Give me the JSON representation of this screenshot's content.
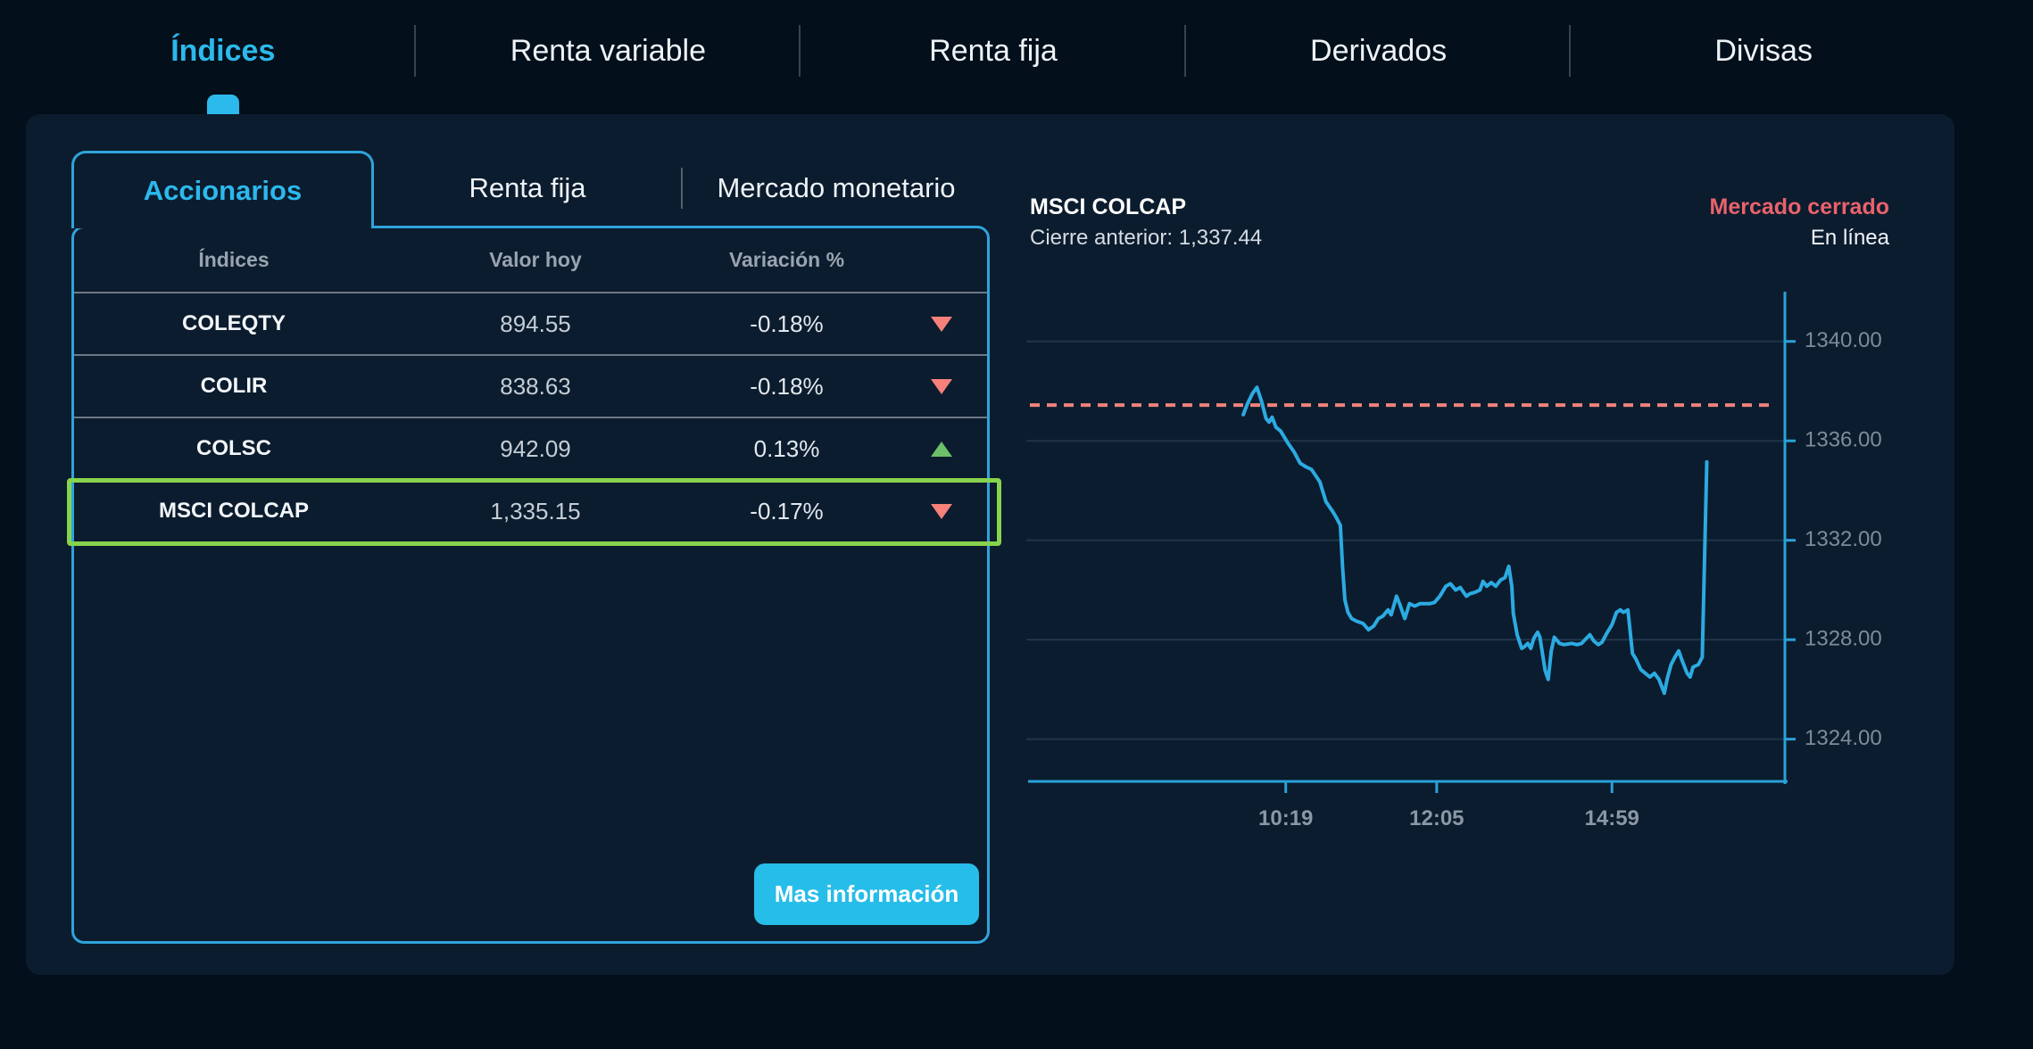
{
  "nav": {
    "tabs": [
      {
        "label": "Índices",
        "active": true
      },
      {
        "label": "Renta variable",
        "active": false
      },
      {
        "label": "Renta fija",
        "active": false
      },
      {
        "label": "Derivados",
        "active": false
      },
      {
        "label": "Divisas",
        "active": false
      }
    ]
  },
  "panel": {
    "tabs": [
      {
        "label": "Accionarios",
        "active": true
      },
      {
        "label": "Renta fija",
        "active": false
      },
      {
        "label": "Mercado monetario",
        "active": false
      }
    ],
    "table": {
      "headers": [
        "Índices",
        "Valor hoy",
        "Variación %"
      ],
      "rows": [
        {
          "name": "COLEQTY",
          "value": "894.55",
          "change": "-0.18%",
          "direction": "down",
          "highlighted": false
        },
        {
          "name": "COLIR",
          "value": "838.63",
          "change": "-0.18%",
          "direction": "down",
          "highlighted": false
        },
        {
          "name": "COLSC",
          "value": "942.09",
          "change": "0.13%",
          "direction": "up",
          "highlighted": false
        },
        {
          "name": "MSCI COLCAP",
          "value": "1,335.15",
          "change": "-0.17%",
          "direction": "down",
          "highlighted": true
        }
      ]
    },
    "button": {
      "label": "Mas información"
    }
  },
  "chart": {
    "title": "MSCI COLCAP",
    "prev_close_label": "Cierre anterior: 1,337.44",
    "status": "Mercado cerrado",
    "mode": "En línea"
  },
  "chart_data": {
    "type": "line",
    "title": "MSCI COLCAP intraday",
    "prev_close": 1337.44,
    "y_ticks": [
      1340,
      1336,
      1332,
      1328,
      1324
    ],
    "y_range": [
      1322.3,
      1342.0
    ],
    "x_ticks": [
      {
        "label": "10:19",
        "pos": 0.342
      },
      {
        "label": "12:05",
        "pos": 0.541
      },
      {
        "label": "14:59",
        "pos": 0.772
      }
    ],
    "grid": "horizontal",
    "series": [
      {
        "name": "MSCI COLCAP",
        "points": [
          [
            0.286,
            1337.05
          ],
          [
            0.291,
            1337.45
          ],
          [
            0.298,
            1337.9
          ],
          [
            0.304,
            1338.15
          ],
          [
            0.31,
            1337.6
          ],
          [
            0.316,
            1336.9
          ],
          [
            0.32,
            1336.75
          ],
          [
            0.324,
            1336.95
          ],
          [
            0.329,
            1336.55
          ],
          [
            0.335,
            1336.4
          ],
          [
            0.345,
            1335.9
          ],
          [
            0.353,
            1335.55
          ],
          [
            0.361,
            1335.1
          ],
          [
            0.369,
            1334.95
          ],
          [
            0.376,
            1334.85
          ],
          [
            0.387,
            1334.35
          ],
          [
            0.395,
            1333.55
          ],
          [
            0.404,
            1333.15
          ],
          [
            0.409,
            1332.9
          ],
          [
            0.414,
            1332.6
          ],
          [
            0.417,
            1330.9
          ],
          [
            0.42,
            1329.6
          ],
          [
            0.424,
            1329.1
          ],
          [
            0.429,
            1328.85
          ],
          [
            0.435,
            1328.75
          ],
          [
            0.444,
            1328.65
          ],
          [
            0.451,
            1328.4
          ],
          [
            0.458,
            1328.55
          ],
          [
            0.464,
            1328.85
          ],
          [
            0.47,
            1328.95
          ],
          [
            0.477,
            1329.2
          ],
          [
            0.481,
            1329.0
          ],
          [
            0.488,
            1329.75
          ],
          [
            0.492,
            1329.45
          ],
          [
            0.499,
            1328.85
          ],
          [
            0.505,
            1329.45
          ],
          [
            0.512,
            1329.35
          ],
          [
            0.519,
            1329.45
          ],
          [
            0.532,
            1329.45
          ],
          [
            0.538,
            1329.5
          ],
          [
            0.545,
            1329.75
          ],
          [
            0.553,
            1330.15
          ],
          [
            0.559,
            1330.25
          ],
          [
            0.566,
            1330.0
          ],
          [
            0.572,
            1330.1
          ],
          [
            0.58,
            1329.75
          ],
          [
            0.585,
            1329.85
          ],
          [
            0.591,
            1329.9
          ],
          [
            0.598,
            1330.0
          ],
          [
            0.602,
            1330.35
          ],
          [
            0.607,
            1330.15
          ],
          [
            0.613,
            1330.3
          ],
          [
            0.619,
            1330.15
          ],
          [
            0.625,
            1330.4
          ],
          [
            0.631,
            1330.5
          ],
          [
            0.636,
            1330.95
          ],
          [
            0.64,
            1330.15
          ],
          [
            0.642,
            1329.05
          ],
          [
            0.647,
            1328.2
          ],
          [
            0.653,
            1327.65
          ],
          [
            0.656,
            1327.7
          ],
          [
            0.661,
            1327.85
          ],
          [
            0.665,
            1327.65
          ],
          [
            0.669,
            1328.05
          ],
          [
            0.674,
            1328.3
          ],
          [
            0.677,
            1328.1
          ],
          [
            0.684,
            1326.75
          ],
          [
            0.688,
            1326.4
          ],
          [
            0.692,
            1327.55
          ],
          [
            0.696,
            1328.1
          ],
          [
            0.703,
            1327.85
          ],
          [
            0.709,
            1327.8
          ],
          [
            0.719,
            1327.85
          ],
          [
            0.726,
            1327.8
          ],
          [
            0.732,
            1327.85
          ],
          [
            0.738,
            1328.05
          ],
          [
            0.743,
            1328.2
          ],
          [
            0.748,
            1327.95
          ],
          [
            0.754,
            1327.8
          ],
          [
            0.759,
            1327.9
          ],
          [
            0.765,
            1328.25
          ],
          [
            0.772,
            1328.6
          ],
          [
            0.778,
            1329.1
          ],
          [
            0.783,
            1329.2
          ],
          [
            0.787,
            1329.1
          ],
          [
            0.793,
            1329.2
          ],
          [
            0.799,
            1327.45
          ],
          [
            0.804,
            1327.2
          ],
          [
            0.81,
            1326.8
          ],
          [
            0.816,
            1326.65
          ],
          [
            0.822,
            1326.5
          ],
          [
            0.828,
            1326.65
          ],
          [
            0.834,
            1326.4
          ],
          [
            0.841,
            1325.85
          ],
          [
            0.845,
            1326.45
          ],
          [
            0.85,
            1327.0
          ],
          [
            0.855,
            1327.3
          ],
          [
            0.86,
            1327.55
          ],
          [
            0.864,
            1327.2
          ],
          [
            0.871,
            1326.65
          ],
          [
            0.875,
            1326.5
          ],
          [
            0.879,
            1326.9
          ],
          [
            0.886,
            1327.0
          ],
          [
            0.891,
            1327.3
          ],
          [
            0.897,
            1335.15
          ]
        ]
      }
    ]
  },
  "colors": {
    "accent": "#2cb9ec",
    "card_border": "#2fa3da",
    "chart_line": "#2caae2",
    "axis": "#2aa2d8",
    "grid": "#203549",
    "axis_label": "#7e8b99",
    "x_label": "#8b97a4",
    "positive": "#6cc068",
    "negative": "#f5817a",
    "highlight_border": "#87d34d",
    "status_closed": "#e9626c",
    "prev_close_line": "#f0837b",
    "button_bg": "#27bde9"
  }
}
